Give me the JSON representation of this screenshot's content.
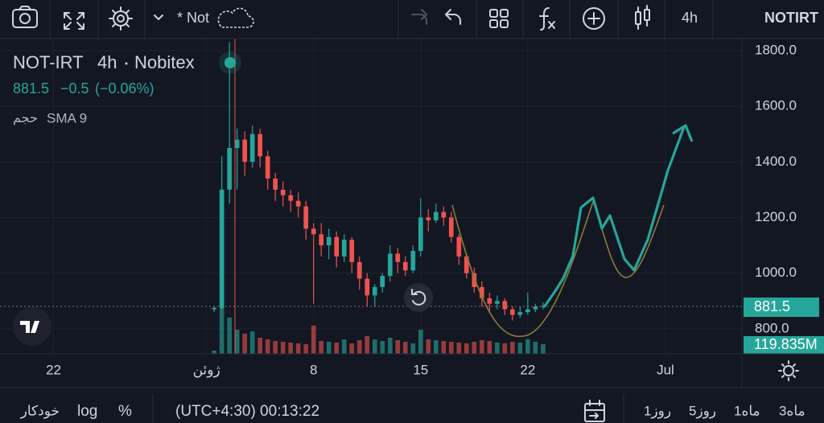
{
  "toolbar": {
    "layout_name": "* Not",
    "interval": "4h",
    "symbol": "NOTIRT"
  },
  "legend": {
    "symbol": "NOT-IRT",
    "interval": "4h",
    "exchange": "Nobitex",
    "price": 881.5,
    "change": "−0.5",
    "change_pct": "(−0.06%)",
    "volume_label": "حجم",
    "indicator": "SMA 9"
  },
  "chart_data": {
    "type": "candlestick",
    "up_color": "#26a69a",
    "down_color": "#ef5350",
    "x": [
      10.5,
      11,
      11.5,
      12,
      12.5,
      13,
      13.5,
      14,
      14.5,
      15,
      15.5,
      16,
      16.5,
      17,
      17.5,
      18,
      18.5,
      19,
      19.5,
      20,
      20.5,
      21,
      21.5,
      22,
      22.5,
      23,
      23.5,
      24,
      24.5,
      25,
      25.5,
      26,
      26.5,
      27,
      27.5,
      28,
      28.5,
      29,
      29.5,
      30,
      30.5,
      31,
      31.5,
      32
    ],
    "open": [
      870,
      875,
      1300,
      1450,
      1480,
      1400,
      1500,
      1420,
      1340,
      1300,
      1280,
      1260,
      1240,
      1160,
      1140,
      1100,
      1130,
      1060,
      1120,
      1040,
      980,
      920,
      950,
      990,
      1070,
      1040,
      1010,
      1080,
      1200,
      1190,
      1220,
      1200,
      1130,
      1060,
      1000,
      950,
      910,
      890,
      900,
      870,
      850,
      860,
      870,
      880
    ],
    "high": [
      880,
      1420,
      1830,
      1520,
      1510,
      1530,
      1520,
      1440,
      1360,
      1330,
      1300,
      1290,
      1260,
      1180,
      1180,
      1160,
      1150,
      1140,
      1130,
      1060,
      1000,
      960,
      1000,
      1100,
      1090,
      1060,
      1100,
      1270,
      1230,
      1250,
      1240,
      1220,
      1140,
      1070,
      1020,
      970,
      930,
      920,
      910,
      880,
      880,
      930,
      890,
      895
    ],
    "low": [
      860,
      870,
      1250,
      1300,
      1350,
      1380,
      1380,
      1300,
      1260,
      1240,
      1220,
      1200,
      1120,
      890,
      1060,
      1050,
      1020,
      1040,
      1000,
      940,
      880,
      880,
      930,
      970,
      1000,
      990,
      1000,
      1060,
      1150,
      1180,
      1170,
      1110,
      1030,
      980,
      930,
      880,
      860,
      870,
      850,
      830,
      840,
      850,
      860,
      870
    ],
    "close": [
      875,
      1300,
      1450,
      1480,
      1400,
      1500,
      1420,
      1340,
      1300,
      1280,
      1260,
      1240,
      1160,
      1140,
      1100,
      1130,
      1060,
      1120,
      1040,
      980,
      920,
      950,
      990,
      1070,
      1040,
      1010,
      1080,
      1200,
      1190,
      1220,
      1200,
      1130,
      1060,
      1000,
      950,
      910,
      890,
      900,
      870,
      850,
      860,
      870,
      880,
      881.5
    ],
    "volume": [
      40,
      600,
      450,
      300,
      250,
      280,
      200,
      180,
      160,
      150,
      140,
      130,
      120,
      350,
      160,
      150,
      140,
      180,
      130,
      170,
      220,
      180,
      160,
      200,
      170,
      150,
      130,
      300,
      180,
      170,
      160,
      150,
      140,
      130,
      150,
      170,
      160,
      140,
      130,
      150,
      140,
      180,
      150,
      119.835
    ],
    "volume_label": "119.835M",
    "volume_ylim": [
      0,
      600
    ],
    "xlim": [
      -3.5,
      45
    ],
    "xticks": [
      {
        "value": 0,
        "label": "22"
      },
      {
        "value": 10,
        "label": "ژوئن"
      },
      {
        "value": 17,
        "label": "8"
      },
      {
        "value": 24,
        "label": "15"
      },
      {
        "value": 31,
        "label": "22"
      },
      {
        "value": 40,
        "label": "Jul"
      }
    ],
    "ylim": [
      710,
      1843
    ],
    "yticks": [
      {
        "value": 800,
        "label": "800.0"
      },
      {
        "value": 1000,
        "label": "1000.0"
      },
      {
        "value": 1200,
        "label": "1200.0"
      },
      {
        "value": 1400,
        "label": "1400.0"
      },
      {
        "value": 1600,
        "label": "1600.0"
      },
      {
        "value": 1800,
        "label": "1800.0"
      }
    ],
    "grid": true
  },
  "bottom_bar": {
    "auto": "خودکار",
    "log": "log",
    "percent": "%",
    "clock": "(UTC+4:30) 00:13:22",
    "ranges": [
      "1روز",
      "5روز",
      "1ماه",
      "3ماه"
    ]
  }
}
